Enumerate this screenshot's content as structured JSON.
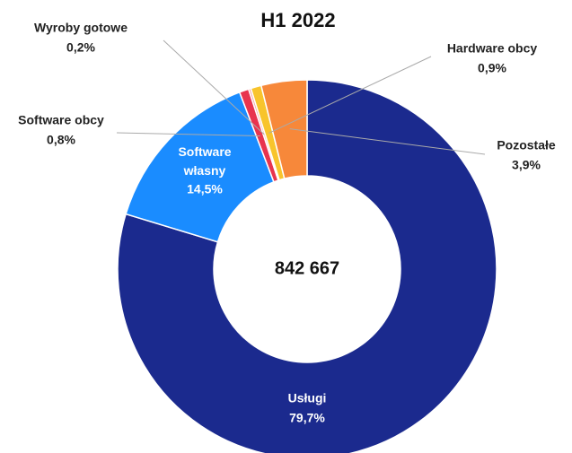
{
  "chart_data": {
    "type": "donut",
    "title": "H1 2022",
    "center_label": "842 667",
    "categories": [
      "Usługi",
      "Software własny",
      "Software obcy",
      "Wyroby gotowe",
      "Hardware obcy",
      "Pozostałe"
    ],
    "values": [
      79.7,
      14.5,
      0.8,
      0.2,
      0.9,
      3.9
    ],
    "value_labels": [
      "79,7%",
      "14,5%",
      "0,8%",
      "0,2%",
      "0,9%",
      "3,9%"
    ],
    "colors": [
      "#1b2a8e",
      "#1a8cff",
      "#e8344e",
      "#f2a7a7",
      "#f8c42c",
      "#f7883a"
    ]
  }
}
